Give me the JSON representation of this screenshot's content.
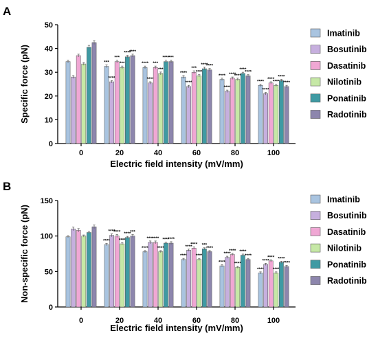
{
  "colors": {
    "Imatinib": "#a9c4e0",
    "Bosutinib": "#c6afde",
    "Dasatinib": "#f0a7d4",
    "Nilotinib": "#c6e8a6",
    "Ponatinib": "#3f9aa3",
    "Radotinib": "#8d86ad",
    "error_bar": "#666666",
    "axis": "#000000"
  },
  "chart_data": [
    {
      "panel": "A",
      "type": "bar",
      "xlabel": "Electric field intensity (mV/mm)",
      "ylabel": "Specific force (pN)",
      "ylim": [
        0,
        50
      ],
      "yticks": [
        "0",
        "10",
        "20",
        "30",
        "40",
        "50"
      ],
      "categories": [
        "0",
        "20",
        "40",
        "60",
        "80",
        "100"
      ],
      "legend_position": "right",
      "series": [
        {
          "name": "Imatinib",
          "values": [
            34.5,
            32.5,
            32,
            28,
            27,
            24.5
          ],
          "errors": [
            0.6,
            0.6,
            0.6,
            0.6,
            0.5,
            0.5
          ],
          "sig": [
            "",
            "***",
            "****",
            "****",
            "****",
            "****"
          ]
        },
        {
          "name": "Bosutinib",
          "values": [
            28,
            26,
            25.5,
            24,
            22,
            21
          ],
          "errors": [
            0.6,
            0.5,
            0.5,
            0.5,
            0.5,
            0.5
          ],
          "sig": [
            "",
            "****",
            "****",
            "****",
            "****",
            "****"
          ]
        },
        {
          "name": "Dasatinib",
          "values": [
            37,
            34.5,
            32,
            30,
            27.5,
            25.5
          ],
          "errors": [
            0.6,
            0.6,
            0.6,
            0.6,
            0.5,
            0.5
          ],
          "sig": [
            "",
            "***",
            "***",
            "***",
            "****",
            "****"
          ]
        },
        {
          "name": "Nilotinib",
          "values": [
            33.5,
            32,
            29.5,
            28.5,
            27,
            24.5
          ],
          "errors": [
            0.6,
            0.6,
            0.6,
            0.5,
            0.5,
            0.5
          ],
          "sig": [
            "",
            "***",
            "***",
            "****",
            "****",
            "****"
          ]
        },
        {
          "name": "Ponatinib",
          "values": [
            40.5,
            36.5,
            34.5,
            31.5,
            29.5,
            26.5
          ],
          "errors": [
            0.8,
            0.6,
            0.6,
            0.6,
            0.5,
            0.5
          ],
          "sig": [
            "",
            "****",
            "****",
            "****",
            "****",
            "****"
          ]
        },
        {
          "name": "Radotinib",
          "values": [
            42.5,
            37,
            34.5,
            31,
            28.5,
            24
          ],
          "errors": [
            0.8,
            0.6,
            0.6,
            0.6,
            0.5,
            0.5
          ],
          "sig": [
            "",
            "****",
            "***",
            "****",
            "****",
            "****"
          ]
        }
      ]
    },
    {
      "panel": "B",
      "type": "bar",
      "xlabel": "Electric field intensity (mV/mm)",
      "ylabel": "Non-specific force (pN)",
      "ylim": [
        0,
        150
      ],
      "yticks": [
        "0",
        "50",
        "100",
        "150"
      ],
      "categories": [
        "0",
        "20",
        "40",
        "60",
        "80",
        "100"
      ],
      "legend_position": "right",
      "series": [
        {
          "name": "Imatinib",
          "values": [
            99,
            88,
            78,
            67,
            58,
            48
          ],
          "errors": [
            1.5,
            1.5,
            1.5,
            1.5,
            1.5,
            1.5
          ],
          "sig": [
            "",
            "****",
            "****",
            "****",
            "****",
            "****"
          ]
        },
        {
          "name": "Bosutinib",
          "values": [
            110,
            101,
            91,
            80,
            70,
            60
          ],
          "errors": [
            2.5,
            2,
            2,
            1.5,
            1.5,
            1.5
          ],
          "sig": [
            "",
            "****",
            "****",
            "****",
            "****",
            "****"
          ]
        },
        {
          "name": "Dasatinib",
          "values": [
            108,
            100,
            91,
            83,
            74,
            65
          ],
          "errors": [
            2.5,
            2,
            2,
            1.5,
            1.5,
            1.5
          ],
          "sig": [
            "",
            "****",
            "****",
            "****",
            "****",
            "****"
          ]
        },
        {
          "name": "Nilotinib",
          "values": [
            100,
            89,
            78,
            67,
            56,
            48
          ],
          "errors": [
            1.5,
            1.5,
            1.5,
            1.5,
            1.5,
            1.5
          ],
          "sig": [
            "",
            "****",
            "****",
            "****",
            "****",
            "****"
          ]
        },
        {
          "name": "Ponatinib",
          "values": [
            105,
            98,
            90,
            82,
            73,
            63
          ],
          "errors": [
            1.5,
            1.5,
            1.5,
            1.5,
            1.5,
            1.5
          ],
          "sig": [
            "",
            "****",
            "****",
            "***",
            "****",
            "****"
          ]
        },
        {
          "name": "Radotinib",
          "values": [
            113,
            100,
            90,
            78,
            67,
            57
          ],
          "errors": [
            2.5,
            2,
            2,
            1.5,
            1.5,
            1.5
          ],
          "sig": [
            "",
            "***",
            "****",
            "****",
            "****",
            "****"
          ]
        }
      ]
    }
  ]
}
